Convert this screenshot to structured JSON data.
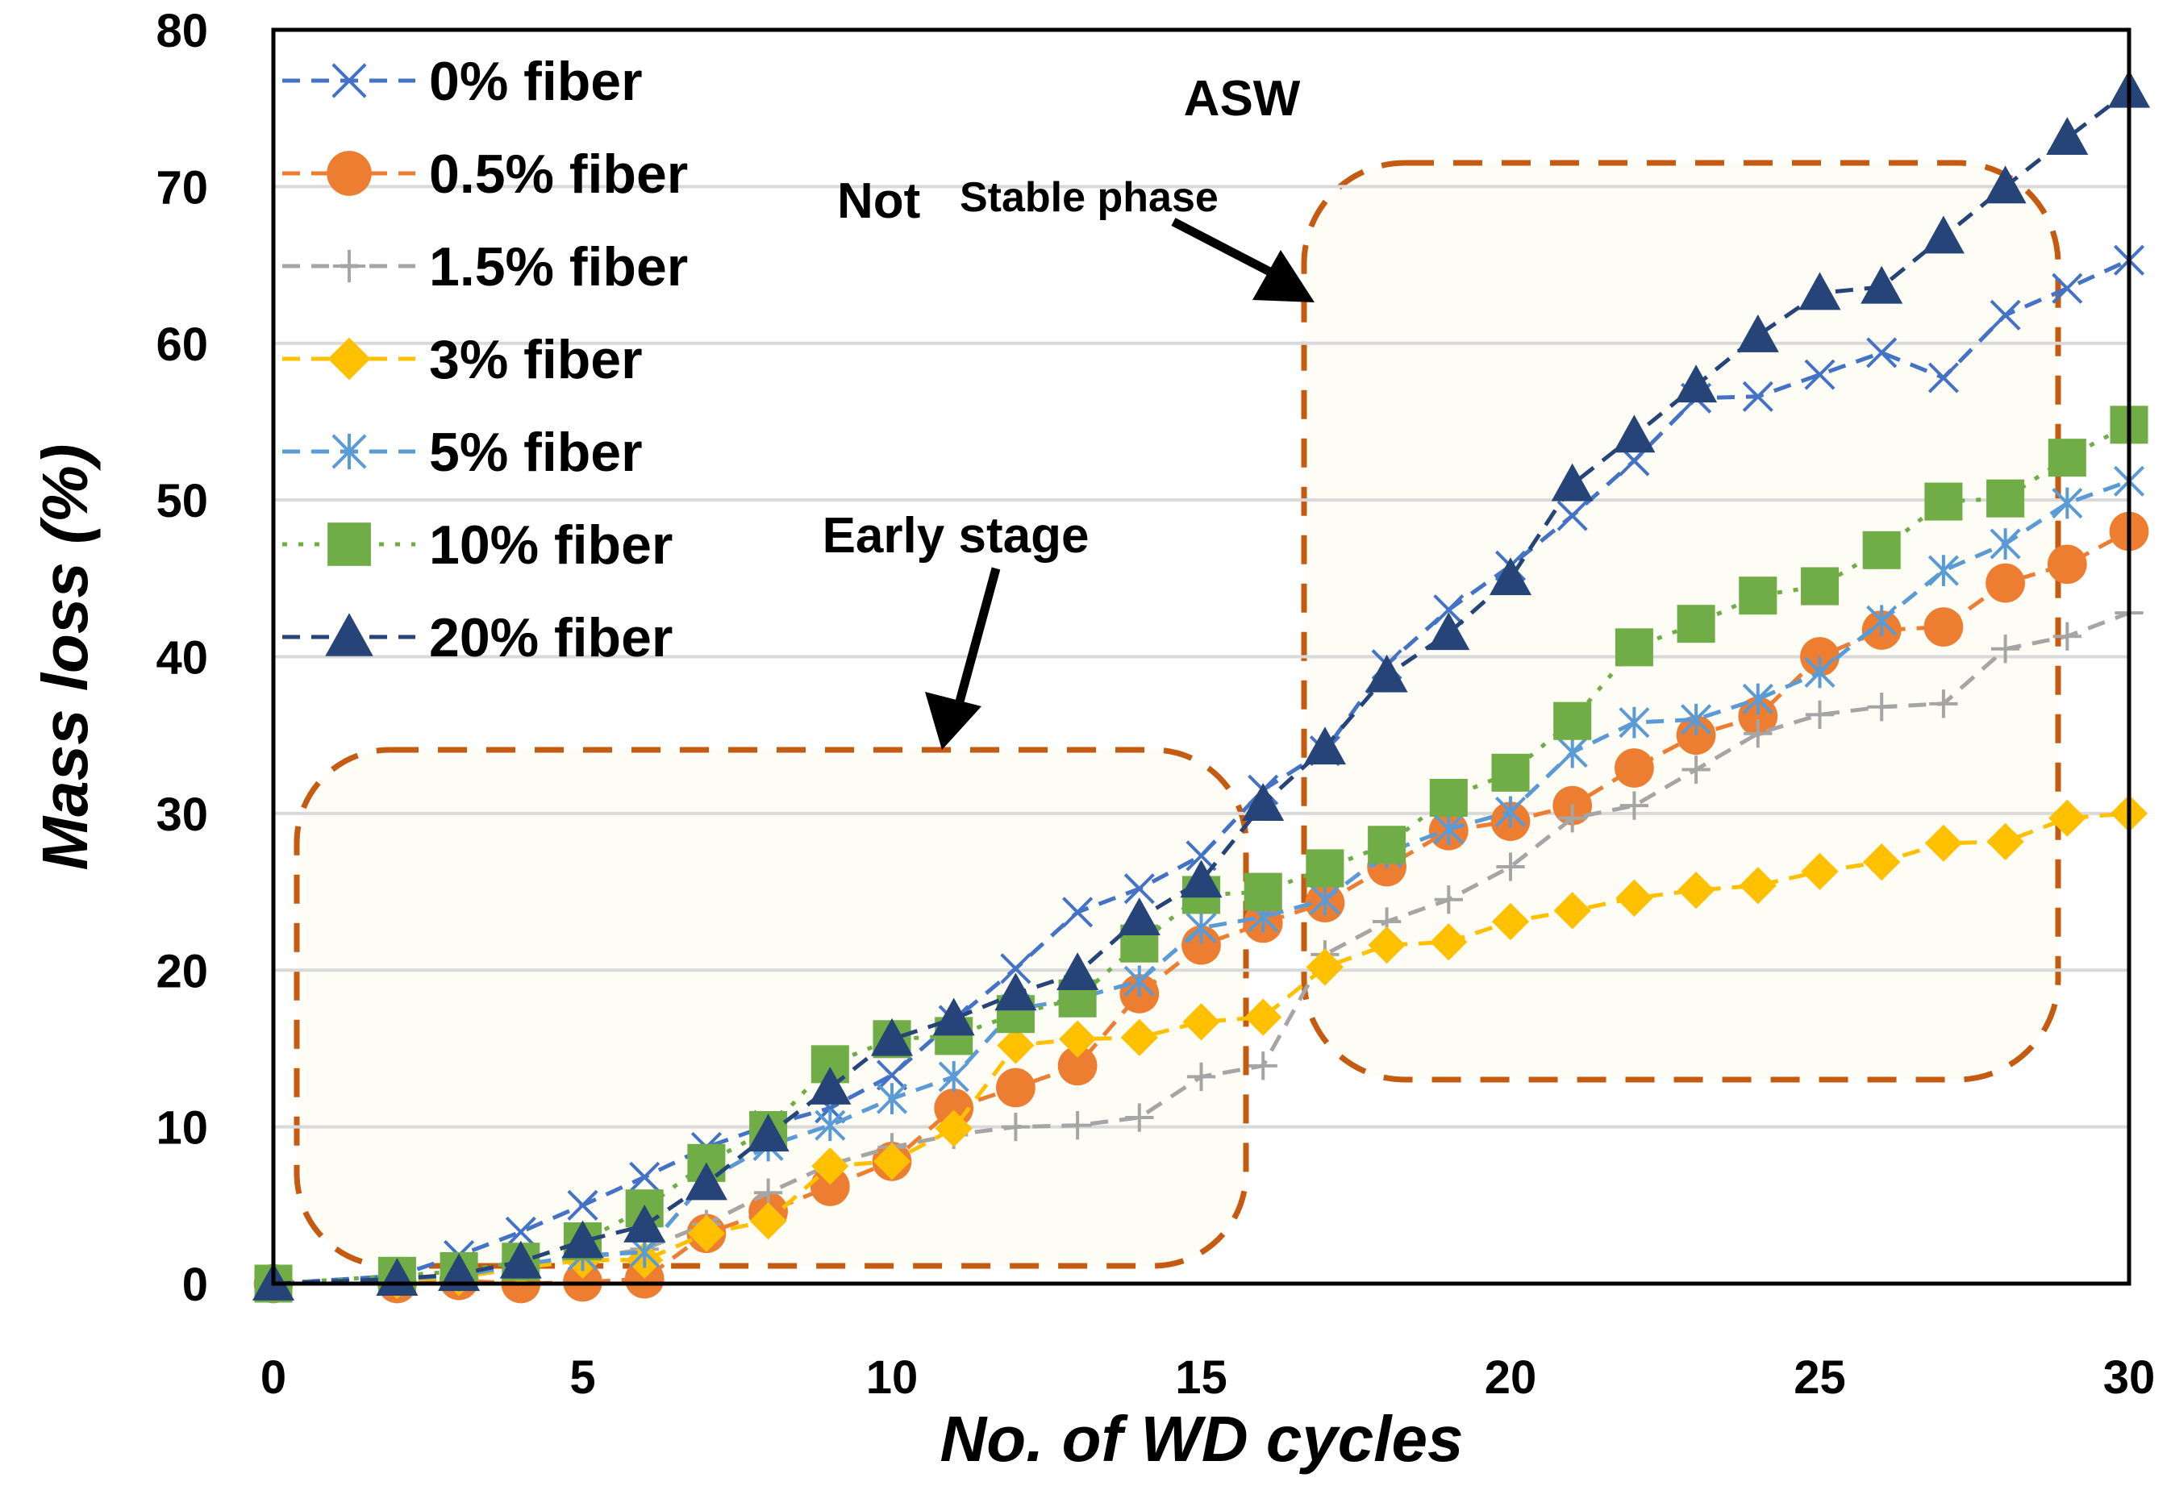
{
  "chart_data": {
    "type": "line",
    "title": "",
    "xlabel": "No. of  WD cycles",
    "ylabel": "Mass loss (%)",
    "xlim": [
      0,
      30
    ],
    "ylim": [
      0,
      80
    ],
    "xticks": [
      0,
      5,
      10,
      15,
      20,
      25,
      30
    ],
    "yticks": [
      0,
      10,
      20,
      30,
      40,
      50,
      60,
      70,
      80
    ],
    "grid": "horizontal",
    "legend_position": "top-left",
    "x": [
      0,
      2,
      3,
      4,
      5,
      6,
      7,
      8,
      9,
      10,
      11,
      12,
      13,
      14,
      15,
      16,
      17,
      18,
      19,
      20,
      21,
      22,
      23,
      24,
      25,
      26,
      27,
      28,
      29,
      30
    ],
    "series": [
      {
        "name": "0% fiber",
        "color": "#4472C4",
        "marker": "x",
        "dash": "dashed",
        "values": [
          0,
          0.5,
          1.8,
          3.3,
          5.0,
          6.8,
          8.7,
          10.1,
          11.2,
          13.3,
          16.8,
          20.1,
          23.7,
          25.2,
          27.3,
          31.5,
          34.0,
          39.5,
          43.0,
          45.8,
          49.0,
          52.5,
          56.5,
          56.6,
          58.0,
          59.4,
          57.8,
          61.8,
          63.5,
          65.3
        ]
      },
      {
        "name": "0.5% fiber",
        "color": "#ED7D31",
        "marker": "circle",
        "dash": "dashed",
        "values": [
          0,
          0.0,
          0.2,
          0.0,
          0.1,
          0.3,
          3.2,
          4.6,
          6.2,
          7.8,
          11.2,
          12.5,
          13.9,
          18.5,
          21.6,
          23.0,
          24.3,
          26.6,
          28.9,
          29.5,
          30.5,
          32.9,
          35.0,
          36.2,
          40.0,
          41.7,
          41.9,
          44.7,
          45.9,
          48.0
        ]
      },
      {
        "name": "1.5% fiber",
        "color": "#A5A5A5",
        "marker": "plus",
        "dash": "dashed",
        "values": [
          0,
          0.3,
          0.5,
          1.0,
          1.6,
          2.2,
          3.8,
          5.8,
          7.6,
          8.7,
          9.5,
          10.0,
          10.1,
          10.6,
          13.2,
          13.9,
          21.0,
          23.1,
          24.5,
          26.6,
          29.7,
          30.5,
          32.8,
          35.1,
          36.3,
          36.8,
          37.0,
          40.5,
          41.3,
          42.8
        ]
      },
      {
        "name": "3% fiber",
        "color": "#FFC000",
        "marker": "diamond",
        "dash": "dashed",
        "values": [
          0,
          0.2,
          0.4,
          1.0,
          1.5,
          1.5,
          3.2,
          4.0,
          7.5,
          7.8,
          9.9,
          15.2,
          15.6,
          15.7,
          16.7,
          17.0,
          20.2,
          21.6,
          21.8,
          23.1,
          23.8,
          24.6,
          25.1,
          25.4,
          26.3,
          26.9,
          28.1,
          28.2,
          29.7,
          30.0
        ]
      },
      {
        "name": "5% fiber",
        "color": "#5B9BD5",
        "marker": "asterisk",
        "dash": "dashed",
        "values": [
          0,
          0.3,
          0.5,
          1.2,
          1.8,
          2.0,
          6.6,
          8.8,
          10.1,
          11.8,
          13.2,
          17.5,
          18.2,
          19.3,
          22.7,
          23.4,
          24.5,
          27.5,
          29.0,
          30.1,
          33.9,
          35.8,
          36.0,
          37.3,
          39.0,
          42.3,
          45.5,
          47.2,
          49.8,
          51.2
        ]
      },
      {
        "name": "10% fiber",
        "color": "#70AD47",
        "marker": "square",
        "dash": "dotted",
        "values": [
          0,
          0.5,
          0.8,
          1.4,
          2.7,
          4.8,
          7.7,
          9.8,
          14.0,
          15.6,
          15.8,
          17.2,
          18.2,
          21.7,
          24.8,
          25.0,
          26.5,
          28.0,
          31.0,
          32.6,
          35.9,
          40.6,
          42.1,
          43.9,
          44.5,
          46.8,
          49.9,
          50.1,
          52.7,
          54.8
        ]
      },
      {
        "name": "20% fiber",
        "color": "#264478",
        "marker": "triangle",
        "dash": "dashed",
        "values": [
          0,
          0.3,
          0.6,
          1.4,
          2.7,
          3.7,
          6.4,
          9.5,
          12.5,
          15.6,
          16.9,
          18.5,
          19.8,
          23.3,
          25.7,
          30.6,
          34.2,
          38.8,
          41.5,
          45.0,
          51.0,
          54.1,
          57.3,
          60.5,
          63.2,
          63.6,
          66.8,
          70.0,
          73.1,
          76.1
        ]
      }
    ],
    "annotations": {
      "asw": "ASW",
      "not": "Not",
      "stable": "Stable phase",
      "early": "Early stage"
    }
  }
}
